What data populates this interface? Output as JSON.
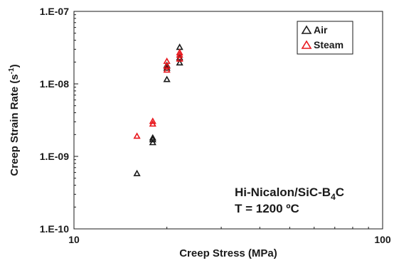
{
  "chart_data": {
    "type": "scatter",
    "title": "",
    "xlabel": "Creep Stress (MPa)",
    "ylabel_main": "Creep Strain Rate (s",
    "ylabel_sup": "-1",
    "ylabel_close": ")",
    "x_scale": "log",
    "y_scale": "log",
    "xlim": [
      10,
      100
    ],
    "ylim": [
      1e-10,
      1e-07
    ],
    "x_tick_labels": [
      {
        "value": 10,
        "label": "10"
      },
      {
        "value": 100,
        "label": "100"
      }
    ],
    "y_tick_labels": [
      {
        "value": 1e-07,
        "label": "1.E-07"
      },
      {
        "value": 1e-08,
        "label": "1.E-08"
      },
      {
        "value": 1e-09,
        "label": "1.E-09"
      },
      {
        "value": 1e-10,
        "label": "1.E-10"
      }
    ],
    "grid": false,
    "legend_position": "top-right",
    "marker": "open-triangle",
    "series": [
      {
        "name": "Air",
        "color": "#1a1a1a",
        "points": [
          {
            "x": 16,
            "y": 5.8e-10
          },
          {
            "x": 18,
            "y": 1.55e-09
          },
          {
            "x": 18,
            "y": 1.7e-09
          },
          {
            "x": 18,
            "y": 1.8e-09
          },
          {
            "x": 20,
            "y": 1.15e-08
          },
          {
            "x": 20,
            "y": 1.65e-08
          },
          {
            "x": 20,
            "y": 1.8e-08
          },
          {
            "x": 22,
            "y": 1.95e-08
          },
          {
            "x": 22,
            "y": 2.3e-08
          },
          {
            "x": 22,
            "y": 3.2e-08
          }
        ]
      },
      {
        "name": "Steam",
        "color": "#e8161c",
        "points": [
          {
            "x": 16,
            "y": 1.9e-09
          },
          {
            "x": 18,
            "y": 2.8e-09
          },
          {
            "x": 18,
            "y": 3.05e-09
          },
          {
            "x": 20,
            "y": 1.55e-08
          },
          {
            "x": 20,
            "y": 1.75e-08
          },
          {
            "x": 20,
            "y": 2.05e-08
          },
          {
            "x": 22,
            "y": 2.2e-08
          },
          {
            "x": 22,
            "y": 2.5e-08
          },
          {
            "x": 22,
            "y": 2.7e-08
          }
        ]
      }
    ],
    "annotation": {
      "line1_main": "Hi-Nicalon/SiC-B",
      "line1_sub": "4",
      "line1_end": "C",
      "line2": "T = 1200 ºC",
      "position": "bottom-right"
    }
  }
}
